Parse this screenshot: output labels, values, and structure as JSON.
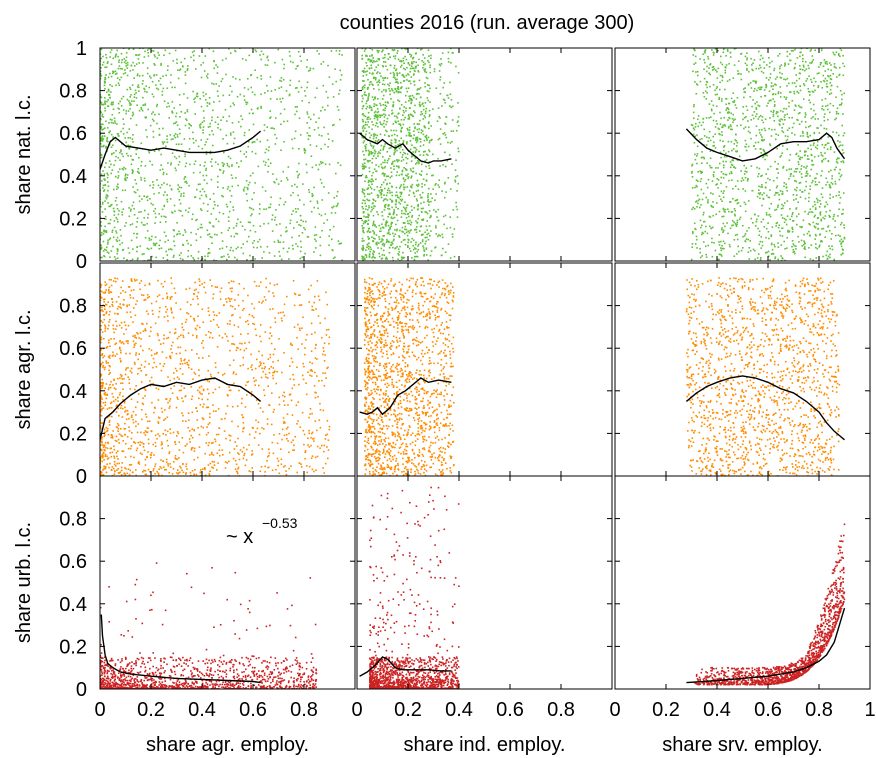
{
  "chart_data": {
    "type": "scatter",
    "title": "counties 2016  (run. average 300)",
    "layout": "3x3 scatter matrix, shared axes per row and column",
    "x_axes": [
      {
        "label": "share agr. employ.",
        "xlim": [
          0,
          1
        ],
        "ticks": [
          "0",
          "0.2",
          "0.4",
          "0.6",
          "0.8"
        ]
      },
      {
        "label": "share ind. employ.",
        "xlim": [
          0,
          1
        ],
        "ticks": [
          "0",
          "0.2",
          "0.4",
          "0.6",
          "0.8"
        ]
      },
      {
        "label": "share srv. employ.",
        "xlim": [
          0,
          1
        ],
        "ticks": [
          "0",
          "0.2",
          "0.4",
          "0.6",
          "0.8",
          "1"
        ]
      }
    ],
    "y_axes": [
      {
        "label": "share nat. l.c.",
        "ylim": [
          0,
          1
        ],
        "ticks": [
          "0",
          "0.2",
          "0.4",
          "0.6",
          "0.8",
          "1"
        ],
        "point_color": "#5ec13a"
      },
      {
        "label": "share agr. l.c.",
        "ylim": [
          0,
          1
        ],
        "ticks": [
          "0",
          "0.2",
          "0.4",
          "0.6",
          "0.8"
        ],
        "point_color": "#ff8c00"
      },
      {
        "label": "share urb. l.c.",
        "ylim": [
          0,
          1
        ],
        "ticks": [
          "0",
          "0.2",
          "0.4",
          "0.6",
          "0.8"
        ],
        "point_color": "#cc2222"
      }
    ],
    "running_average_color": "#000000",
    "annotation": {
      "panel": "urb-agr",
      "text_base": "~ x",
      "text_exponent": "−0.53"
    },
    "running_averages": {
      "nat-agr": [
        [
          0.0,
          0.43
        ],
        [
          0.02,
          0.5
        ],
        [
          0.04,
          0.56
        ],
        [
          0.06,
          0.58
        ],
        [
          0.08,
          0.56
        ],
        [
          0.1,
          0.54
        ],
        [
          0.15,
          0.53
        ],
        [
          0.2,
          0.52
        ],
        [
          0.25,
          0.53
        ],
        [
          0.3,
          0.52
        ],
        [
          0.35,
          0.51
        ],
        [
          0.4,
          0.51
        ],
        [
          0.45,
          0.51
        ],
        [
          0.5,
          0.52
        ],
        [
          0.55,
          0.54
        ],
        [
          0.6,
          0.58
        ],
        [
          0.63,
          0.61
        ]
      ],
      "nat-ind": [
        [
          0.01,
          0.6
        ],
        [
          0.04,
          0.57
        ],
        [
          0.08,
          0.55
        ],
        [
          0.1,
          0.57
        ],
        [
          0.12,
          0.55
        ],
        [
          0.15,
          0.53
        ],
        [
          0.18,
          0.55
        ],
        [
          0.2,
          0.52
        ],
        [
          0.22,
          0.5
        ],
        [
          0.25,
          0.47
        ],
        [
          0.28,
          0.46
        ],
        [
          0.3,
          0.47
        ],
        [
          0.33,
          0.47
        ],
        [
          0.37,
          0.48
        ]
      ],
      "nat-srv": [
        [
          0.28,
          0.62
        ],
        [
          0.32,
          0.57
        ],
        [
          0.36,
          0.53
        ],
        [
          0.4,
          0.51
        ],
        [
          0.45,
          0.49
        ],
        [
          0.5,
          0.47
        ],
        [
          0.55,
          0.48
        ],
        [
          0.6,
          0.51
        ],
        [
          0.65,
          0.55
        ],
        [
          0.7,
          0.56
        ],
        [
          0.75,
          0.56
        ],
        [
          0.8,
          0.57
        ],
        [
          0.83,
          0.6
        ],
        [
          0.85,
          0.58
        ],
        [
          0.87,
          0.53
        ],
        [
          0.9,
          0.48
        ]
      ],
      "agr-agr": [
        [
          0.0,
          0.17
        ],
        [
          0.02,
          0.27
        ],
        [
          0.05,
          0.3
        ],
        [
          0.08,
          0.34
        ],
        [
          0.12,
          0.38
        ],
        [
          0.16,
          0.41
        ],
        [
          0.2,
          0.43
        ],
        [
          0.25,
          0.42
        ],
        [
          0.3,
          0.44
        ],
        [
          0.35,
          0.43
        ],
        [
          0.4,
          0.45
        ],
        [
          0.45,
          0.46
        ],
        [
          0.5,
          0.43
        ],
        [
          0.55,
          0.42
        ],
        [
          0.6,
          0.38
        ],
        [
          0.63,
          0.35
        ]
      ],
      "agr-ind": [
        [
          0.01,
          0.3
        ],
        [
          0.04,
          0.29
        ],
        [
          0.06,
          0.3
        ],
        [
          0.08,
          0.32
        ],
        [
          0.1,
          0.29
        ],
        [
          0.13,
          0.32
        ],
        [
          0.16,
          0.38
        ],
        [
          0.19,
          0.4
        ],
        [
          0.22,
          0.43
        ],
        [
          0.25,
          0.46
        ],
        [
          0.28,
          0.44
        ],
        [
          0.32,
          0.45
        ],
        [
          0.37,
          0.44
        ]
      ],
      "agr-srv": [
        [
          0.28,
          0.35
        ],
        [
          0.32,
          0.39
        ],
        [
          0.36,
          0.42
        ],
        [
          0.4,
          0.44
        ],
        [
          0.45,
          0.46
        ],
        [
          0.5,
          0.47
        ],
        [
          0.55,
          0.46
        ],
        [
          0.6,
          0.44
        ],
        [
          0.65,
          0.41
        ],
        [
          0.7,
          0.39
        ],
        [
          0.75,
          0.35
        ],
        [
          0.8,
          0.3
        ],
        [
          0.83,
          0.25
        ],
        [
          0.86,
          0.21
        ],
        [
          0.88,
          0.19
        ],
        [
          0.9,
          0.17
        ]
      ],
      "urb-agr": [
        [
          0.005,
          0.35
        ],
        [
          0.01,
          0.25
        ],
        [
          0.02,
          0.16
        ],
        [
          0.03,
          0.12
        ],
        [
          0.05,
          0.1
        ],
        [
          0.08,
          0.08
        ],
        [
          0.12,
          0.07
        ],
        [
          0.2,
          0.06
        ],
        [
          0.3,
          0.05
        ],
        [
          0.4,
          0.045
        ],
        [
          0.5,
          0.04
        ],
        [
          0.6,
          0.035
        ],
        [
          0.63,
          0.03
        ]
      ],
      "urb-ind": [
        [
          0.01,
          0.06
        ],
        [
          0.04,
          0.08
        ],
        [
          0.07,
          0.11
        ],
        [
          0.1,
          0.15
        ],
        [
          0.12,
          0.14
        ],
        [
          0.15,
          0.1
        ],
        [
          0.18,
          0.09
        ],
        [
          0.22,
          0.09
        ],
        [
          0.28,
          0.09
        ],
        [
          0.33,
          0.085
        ],
        [
          0.37,
          0.085
        ]
      ],
      "urb-srv": [
        [
          0.28,
          0.03
        ],
        [
          0.35,
          0.035
        ],
        [
          0.4,
          0.04
        ],
        [
          0.5,
          0.05
        ],
        [
          0.6,
          0.06
        ],
        [
          0.65,
          0.07
        ],
        [
          0.7,
          0.08
        ],
        [
          0.75,
          0.1
        ],
        [
          0.8,
          0.13
        ],
        [
          0.83,
          0.16
        ],
        [
          0.86,
          0.22
        ],
        [
          0.88,
          0.3
        ],
        [
          0.9,
          0.38
        ]
      ]
    }
  }
}
